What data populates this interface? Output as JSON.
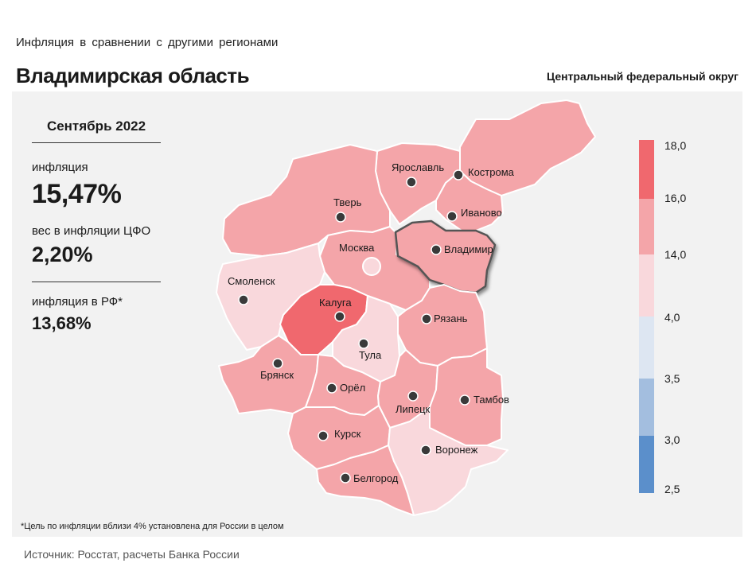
{
  "header": {
    "subtitle": "Инфляция в сравнении с другими регионами",
    "title": "Владимирская область",
    "district": "Центральный федеральный округ"
  },
  "stats": {
    "month": "Сентябрь 2022",
    "inflation_label": "инфляция",
    "inflation_value": "15,47%",
    "weight_label": "вес в инфляции ЦФО",
    "weight_value": "2,20%",
    "rf_label": "инфляция в РФ*",
    "rf_value": "13,68%"
  },
  "legend": {
    "labels": [
      "18,0",
      "16,0",
      "14,0",
      "4,0",
      "3,5",
      "3,0",
      "2,5"
    ],
    "colors": [
      "#f0686e",
      "#f4a5a9",
      "#f9d8dc",
      "#dde6f2",
      "#a3bedf",
      "#5b8fcb"
    ]
  },
  "regions": {
    "tver": "Тверь",
    "yaroslavl": "Ярославль",
    "kostroma": "Кострома",
    "ivanovo": "Иваново",
    "moscow": "Москва",
    "vladimir": "Владимир",
    "smolensk": "Смоленск",
    "kaluga": "Калуга",
    "ryazan": "Рязань",
    "tula": "Тула",
    "bryansk": "Брянск",
    "orel": "Орёл",
    "lipetsk": "Липецк",
    "tambov": "Тамбов",
    "kursk": "Курск",
    "voronezh": "Воронеж",
    "belgorod": "Белгород"
  },
  "footnote": "*Цель по инфляции вблизи 4% установлена для России в целом",
  "source": "Источник: Росстат, расчеты Банка России"
}
